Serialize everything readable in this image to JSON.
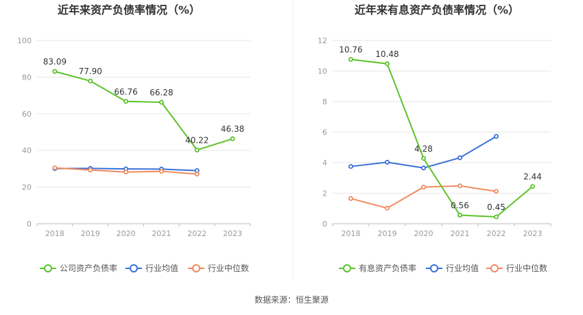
{
  "footer": {
    "source_label": "数据来源：恒生聚源"
  },
  "colors": {
    "company": "#5cc22b",
    "industry_avg": "#3a6fd8",
    "industry_median": "#f08a5d",
    "grid": "#e6e6e6",
    "axis_text": "#999999",
    "title": "#333333",
    "divider": "#eeeeee"
  },
  "chart_data": [
    {
      "type": "line",
      "title": "近年来资产负债率情况（%）",
      "categories": [
        "2018",
        "2019",
        "2020",
        "2021",
        "2022",
        "2023"
      ],
      "ylim": [
        0,
        100
      ],
      "yticks": [
        0,
        20,
        40,
        60,
        80,
        100
      ],
      "grid": true,
      "legend": "bottom",
      "series": [
        {
          "name": "公司资产负债率",
          "values": [
            83.09,
            77.9,
            66.76,
            66.28,
            40.22,
            46.38
          ],
          "labels": [
            "83.09",
            "77.90",
            "66.76",
            "66.28",
            "40.22",
            "46.38"
          ]
        },
        {
          "name": "行业均值",
          "values": [
            30.1,
            30.2,
            29.9,
            29.8,
            29.0,
            null
          ]
        },
        {
          "name": "行业中位数",
          "values": [
            30.5,
            29.3,
            28.2,
            28.6,
            27.1,
            null
          ]
        }
      ]
    },
    {
      "type": "line",
      "title": "近年来有息资产负债率情况（%）",
      "categories": [
        "2018",
        "2019",
        "2020",
        "2021",
        "2022",
        "2023"
      ],
      "ylim": [
        0,
        12
      ],
      "yticks": [
        0,
        2,
        4,
        6,
        8,
        10,
        12
      ],
      "grid": true,
      "legend": "bottom",
      "series": [
        {
          "name": "有息资产负债率",
          "values": [
            10.76,
            10.48,
            4.28,
            0.56,
            0.45,
            2.44
          ],
          "labels": [
            "10.76",
            "10.48",
            "4.28",
            "0.56",
            "0.45",
            "2.44"
          ]
        },
        {
          "name": "行业均值",
          "values": [
            3.75,
            4.03,
            3.65,
            4.32,
            5.72,
            null
          ]
        },
        {
          "name": "行业中位数",
          "values": [
            1.65,
            1.02,
            2.4,
            2.48,
            2.12,
            null
          ]
        }
      ]
    }
  ]
}
